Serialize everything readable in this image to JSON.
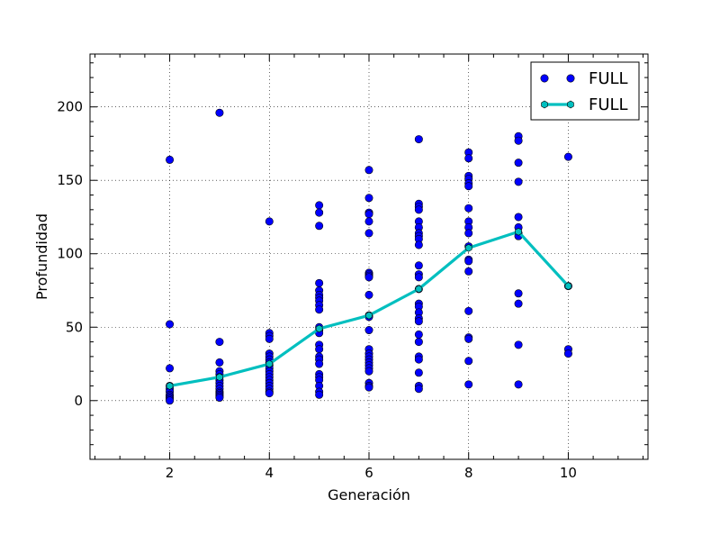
{
  "chart_data": {
    "type": "scatter",
    "xlabel": "Generación",
    "ylabel": "Profundidad",
    "xlim": [
      0.4,
      11.6
    ],
    "ylim": [
      -40,
      236
    ],
    "xticks": [
      2,
      4,
      6,
      8,
      10
    ],
    "yticks": [
      0,
      50,
      100,
      150,
      200
    ],
    "grid": true,
    "legend_position": "top-right",
    "colors": {
      "scatter": "#0000ff",
      "line": "#00bfbf",
      "grid": "#000000"
    },
    "series": [
      {
        "name": "FULL",
        "kind": "scatter",
        "points": [
          [
            2,
            164
          ],
          [
            2,
            52
          ],
          [
            2,
            22
          ],
          [
            2,
            10
          ],
          [
            2,
            8
          ],
          [
            2,
            6
          ],
          [
            2,
            4
          ],
          [
            2,
            3
          ],
          [
            2,
            2
          ],
          [
            2,
            1
          ],
          [
            2,
            0
          ],
          [
            3,
            196
          ],
          [
            3,
            40
          ],
          [
            3,
            26
          ],
          [
            3,
            20
          ],
          [
            3,
            18
          ],
          [
            3,
            16
          ],
          [
            3,
            14
          ],
          [
            3,
            12
          ],
          [
            3,
            10
          ],
          [
            3,
            8
          ],
          [
            3,
            6
          ],
          [
            3,
            5
          ],
          [
            3,
            4
          ],
          [
            3,
            3
          ],
          [
            3,
            2
          ],
          [
            4,
            122
          ],
          [
            4,
            46
          ],
          [
            4,
            44
          ],
          [
            4,
            42
          ],
          [
            4,
            32
          ],
          [
            4,
            30
          ],
          [
            4,
            28
          ],
          [
            4,
            26
          ],
          [
            4,
            24
          ],
          [
            4,
            22
          ],
          [
            4,
            20
          ],
          [
            4,
            18
          ],
          [
            4,
            16
          ],
          [
            4,
            14
          ],
          [
            4,
            12
          ],
          [
            4,
            10
          ],
          [
            4,
            8
          ],
          [
            4,
            6
          ],
          [
            4,
            5
          ],
          [
            5,
            133
          ],
          [
            5,
            128
          ],
          [
            5,
            119
          ],
          [
            5,
            80
          ],
          [
            5,
            75
          ],
          [
            5,
            72
          ],
          [
            5,
            70
          ],
          [
            5,
            68
          ],
          [
            5,
            65
          ],
          [
            5,
            62
          ],
          [
            5,
            50
          ],
          [
            5,
            48
          ],
          [
            5,
            46
          ],
          [
            5,
            38
          ],
          [
            5,
            35
          ],
          [
            5,
            30
          ],
          [
            5,
            28
          ],
          [
            5,
            25
          ],
          [
            5,
            18
          ],
          [
            5,
            16
          ],
          [
            5,
            14
          ],
          [
            5,
            10
          ],
          [
            5,
            6
          ],
          [
            5,
            4
          ],
          [
            6,
            157
          ],
          [
            6,
            138
          ],
          [
            6,
            128
          ],
          [
            6,
            127
          ],
          [
            6,
            122
          ],
          [
            6,
            114
          ],
          [
            6,
            87
          ],
          [
            6,
            86
          ],
          [
            6,
            85
          ],
          [
            6,
            84
          ],
          [
            6,
            72
          ],
          [
            6,
            58
          ],
          [
            6,
            57
          ],
          [
            6,
            48
          ],
          [
            6,
            35
          ],
          [
            6,
            32
          ],
          [
            6,
            30
          ],
          [
            6,
            28
          ],
          [
            6,
            26
          ],
          [
            6,
            24
          ],
          [
            6,
            22
          ],
          [
            6,
            20
          ],
          [
            6,
            12
          ],
          [
            6,
            10
          ],
          [
            6,
            9
          ],
          [
            7,
            178
          ],
          [
            7,
            134
          ],
          [
            7,
            132
          ],
          [
            7,
            130
          ],
          [
            7,
            122
          ],
          [
            7,
            118
          ],
          [
            7,
            114
          ],
          [
            7,
            112
          ],
          [
            7,
            110
          ],
          [
            7,
            106
          ],
          [
            7,
            92
          ],
          [
            7,
            86
          ],
          [
            7,
            84
          ],
          [
            7,
            76
          ],
          [
            7,
            66
          ],
          [
            7,
            64
          ],
          [
            7,
            60
          ],
          [
            7,
            56
          ],
          [
            7,
            54
          ],
          [
            7,
            45
          ],
          [
            7,
            40
          ],
          [
            7,
            30
          ],
          [
            7,
            28
          ],
          [
            7,
            19
          ],
          [
            7,
            10
          ],
          [
            7,
            8
          ],
          [
            8,
            169
          ],
          [
            8,
            165
          ],
          [
            8,
            153
          ],
          [
            8,
            151
          ],
          [
            8,
            148
          ],
          [
            8,
            146
          ],
          [
            8,
            131
          ],
          [
            8,
            122
          ],
          [
            8,
            118
          ],
          [
            8,
            114
          ],
          [
            8,
            105
          ],
          [
            8,
            96
          ],
          [
            8,
            95
          ],
          [
            8,
            88
          ],
          [
            8,
            61
          ],
          [
            8,
            43
          ],
          [
            8,
            42
          ],
          [
            8,
            27
          ],
          [
            8,
            11
          ],
          [
            9,
            180
          ],
          [
            9,
            177
          ],
          [
            9,
            162
          ],
          [
            9,
            149
          ],
          [
            9,
            125
          ],
          [
            9,
            118
          ],
          [
            9,
            114
          ],
          [
            9,
            112
          ],
          [
            9,
            73
          ],
          [
            9,
            66
          ],
          [
            9,
            38
          ],
          [
            9,
            11
          ],
          [
            10,
            166
          ],
          [
            10,
            78
          ],
          [
            10,
            35
          ],
          [
            10,
            32
          ]
        ]
      },
      {
        "name": "FULL",
        "kind": "line",
        "x": [
          2,
          3,
          4,
          5,
          6,
          7,
          8,
          9,
          10
        ],
        "y": [
          10,
          16,
          25,
          49,
          58,
          76,
          104,
          115,
          78
        ]
      }
    ]
  }
}
